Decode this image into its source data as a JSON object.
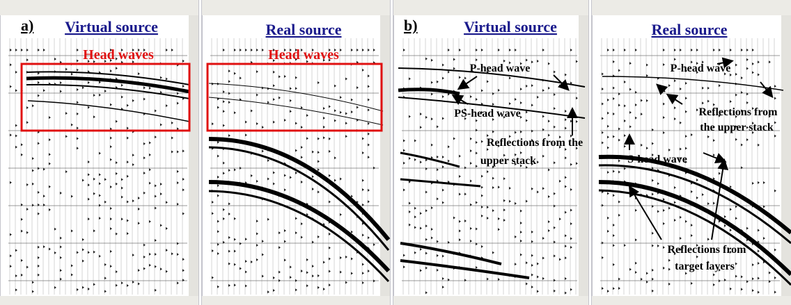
{
  "panels": [
    {
      "label": "a)",
      "title": "Virtual source",
      "annotations": [
        "Head waves"
      ]
    },
    {
      "title": "Real source",
      "annotations": [
        "Head waves"
      ]
    },
    {
      "label": "b)",
      "title": "Virtual source",
      "annotations": [
        "P-head wave",
        "PS-head wave",
        "Reflections from the",
        "upper stack"
      ]
    },
    {
      "title": "Real source",
      "annotations": [
        "P-head wave",
        "Reflections from",
        "the upper stack",
        "S-head wave",
        "Reflections from",
        "target layers"
      ]
    }
  ]
}
